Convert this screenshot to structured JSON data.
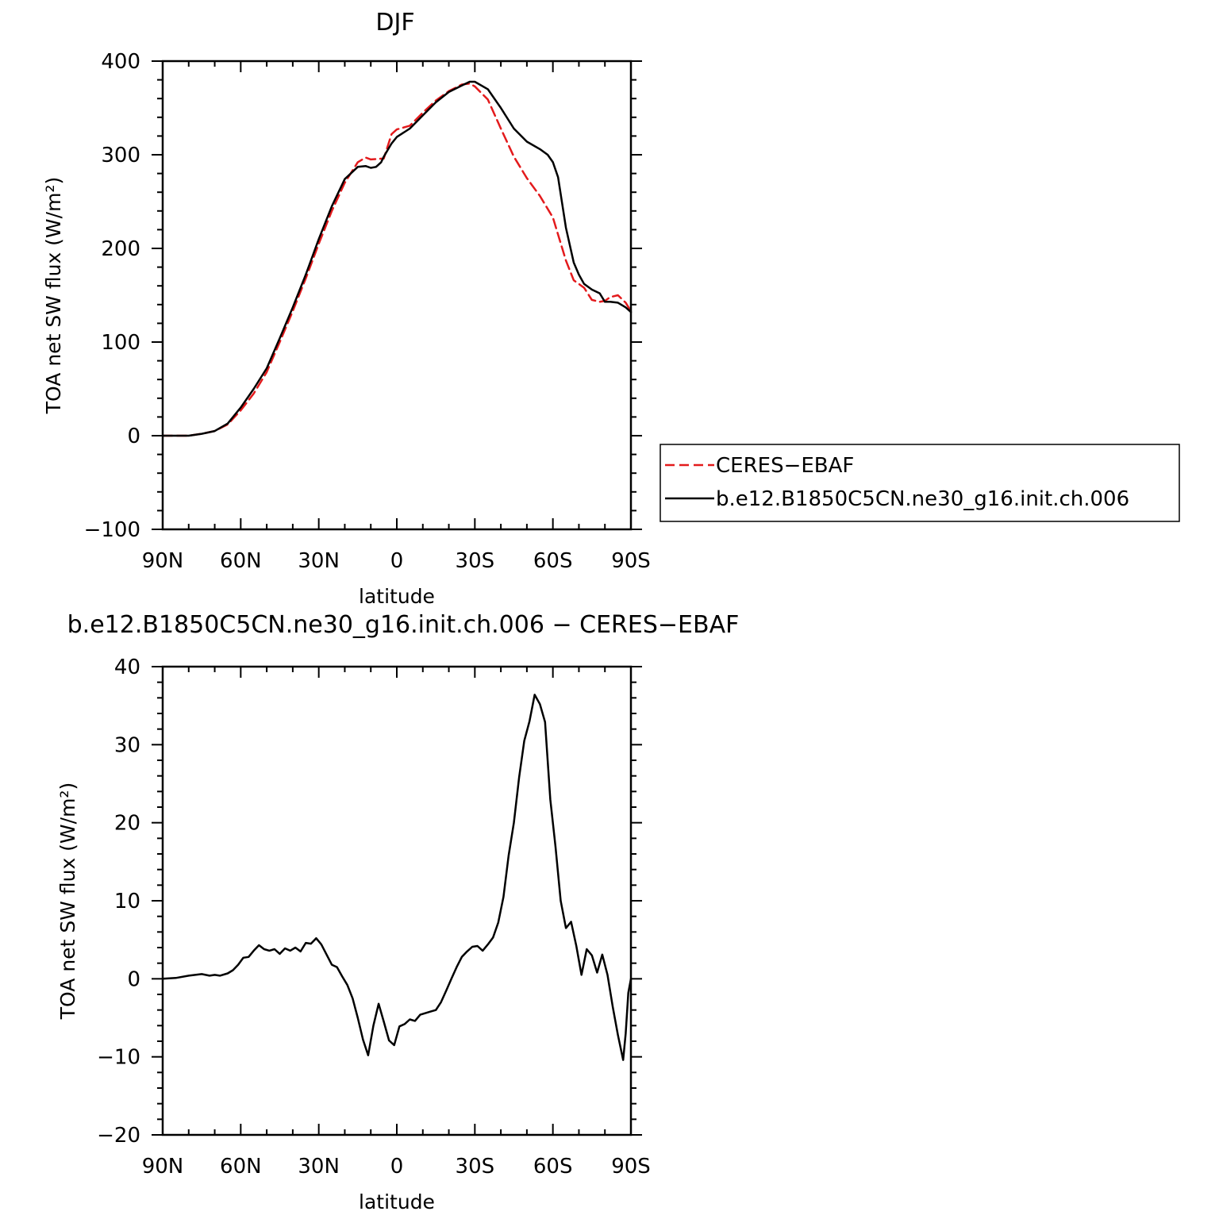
{
  "chart_data": [
    {
      "type": "line",
      "title": "DJF",
      "xlabel": "latitude",
      "ylabel": "TOA net SW flux (W/m²)",
      "xlim": [
        90,
        -90
      ],
      "ylim": [
        -100,
        400
      ],
      "x_ticks": [
        90,
        60,
        30,
        0,
        -30,
        -60,
        -90
      ],
      "x_tick_labels": [
        "90N",
        "60N",
        "30N",
        "0",
        "30S",
        "60S",
        "90S"
      ],
      "y_ticks": [
        -100,
        0,
        100,
        200,
        300,
        400
      ],
      "y_tick_labels": [
        "−100",
        "0",
        "100",
        "200",
        "300",
        "400"
      ],
      "legend_position": "right",
      "series": [
        {
          "name": "CERES−EBAF",
          "color": "#e31a1c",
          "dash": "dashed",
          "x": [
            90,
            85,
            80,
            75,
            70,
            65,
            60,
            55,
            50,
            45,
            40,
            35,
            30,
            25,
            20,
            15,
            12,
            10,
            5,
            2,
            0,
            -5,
            -10,
            -15,
            -20,
            -25,
            -28,
            -30,
            -35,
            -40,
            -45,
            -50,
            -55,
            -60,
            -65,
            -68,
            -70,
            -72,
            -75,
            -78,
            -80,
            -82,
            -85,
            -88,
            -90
          ],
          "y": [
            0,
            0,
            0,
            2,
            5,
            12,
            27,
            45,
            68,
            100,
            133,
            168,
            205,
            240,
            270,
            292,
            297,
            295,
            296,
            322,
            327,
            331,
            345,
            358,
            368,
            375,
            376,
            373,
            359,
            328,
            298,
            275,
            256,
            233,
            187,
            166,
            162,
            158,
            145,
            143,
            144,
            148,
            150,
            142,
            133
          ]
        },
        {
          "name": "b.e12.B1850C5CN.ne30_g16.init.ch.006",
          "color": "#000000",
          "dash": "solid",
          "x": [
            90,
            85,
            80,
            75,
            70,
            65,
            60,
            55,
            50,
            45,
            40,
            35,
            30,
            25,
            20,
            15,
            12,
            10,
            8,
            6,
            5,
            2,
            0,
            -5,
            -10,
            -15,
            -20,
            -25,
            -28,
            -30,
            -35,
            -40,
            -45,
            -50,
            -55,
            -58,
            -60,
            -62,
            -65,
            -68,
            -70,
            -72,
            -75,
            -78,
            -80,
            -82,
            -85,
            -88,
            -90
          ],
          "y": [
            0,
            0,
            0,
            2,
            5,
            13,
            30,
            50,
            72,
            104,
            137,
            172,
            210,
            245,
            274,
            287,
            288,
            286,
            287,
            292,
            298,
            312,
            319,
            328,
            342,
            356,
            367,
            374,
            378,
            378,
            370,
            350,
            328,
            314,
            306,
            300,
            292,
            276,
            222,
            185,
            172,
            162,
            156,
            152,
            143,
            143,
            142,
            137,
            132
          ]
        }
      ]
    },
    {
      "type": "line",
      "title": "b.e12.B1850C5CN.ne30_g16.init.ch.006 − CERES−EBAF",
      "xlabel": "latitude",
      "ylabel": "TOA net SW flux (W/m²)",
      "xlim": [
        90,
        -90
      ],
      "ylim": [
        -20,
        40
      ],
      "x_ticks": [
        90,
        60,
        30,
        0,
        -30,
        -60,
        -90
      ],
      "x_tick_labels": [
        "90N",
        "60N",
        "30N",
        "0",
        "30S",
        "60S",
        "90S"
      ],
      "y_ticks": [
        -20,
        -10,
        0,
        10,
        20,
        30,
        40
      ],
      "y_tick_labels": [
        "−20",
        "−10",
        "0",
        "10",
        "20",
        "30",
        "40"
      ],
      "series": [
        {
          "color": "#000000",
          "dash": "solid",
          "x": [
            90,
            85,
            80,
            75,
            72,
            70,
            68,
            65,
            63,
            61,
            59,
            57,
            55,
            53,
            51,
            49,
            47,
            45,
            43,
            41,
            39,
            37,
            35,
            33,
            31,
            29,
            27,
            25,
            23,
            21,
            19,
            17,
            15,
            13,
            11,
            9,
            7,
            5,
            3,
            1,
            -1,
            -3,
            -5,
            -7,
            -9,
            -11,
            -13,
            -15,
            -17,
            -19,
            -21,
            -23,
            -25,
            -27,
            -29,
            -31,
            -33,
            -35,
            -37,
            -39,
            -41,
            -43,
            -45,
            -47,
            -49,
            -51,
            -53,
            -55,
            -57,
            -59,
            -61,
            -63,
            -65,
            -67,
            -69,
            -71,
            -73,
            -75,
            -77,
            -79,
            -81,
            -83,
            -85,
            -87,
            -88,
            -89,
            -90
          ],
          "y": [
            0,
            0.1,
            0.4,
            0.6,
            0.4,
            0.5,
            0.4,
            0.7,
            1.1,
            1.8,
            2.7,
            2.8,
            3.6,
            4.3,
            3.8,
            3.6,
            3.8,
            3.2,
            3.9,
            3.6,
            4.0,
            3.5,
            4.6,
            4.5,
            5.2,
            4.4,
            3.1,
            1.8,
            1.5,
            0.3,
            -0.8,
            -2.5,
            -5.0,
            -7.8,
            -9.8,
            -6.0,
            -3.2,
            -5.5,
            -7.9,
            -8.5,
            -6.1,
            -5.8,
            -5.2,
            -5.4,
            -4.6,
            -4.4,
            -4.2,
            -4.0,
            -3.0,
            -1.5,
            0.0,
            1.5,
            2.8,
            3.5,
            4.1,
            4.2,
            3.6,
            4.4,
            5.3,
            7.2,
            10.5,
            15.8,
            20.0,
            25.8,
            30.5,
            33.0,
            36.4,
            35.2,
            32.9,
            23.0,
            17.0,
            10.0,
            6.5,
            7.3,
            4.2,
            0.5,
            3.8,
            3.0,
            0.8,
            3.1,
            0.5,
            -3.6,
            -7.2,
            -10.4,
            -7.0,
            -1.8,
            0.0
          ]
        }
      ]
    }
  ]
}
